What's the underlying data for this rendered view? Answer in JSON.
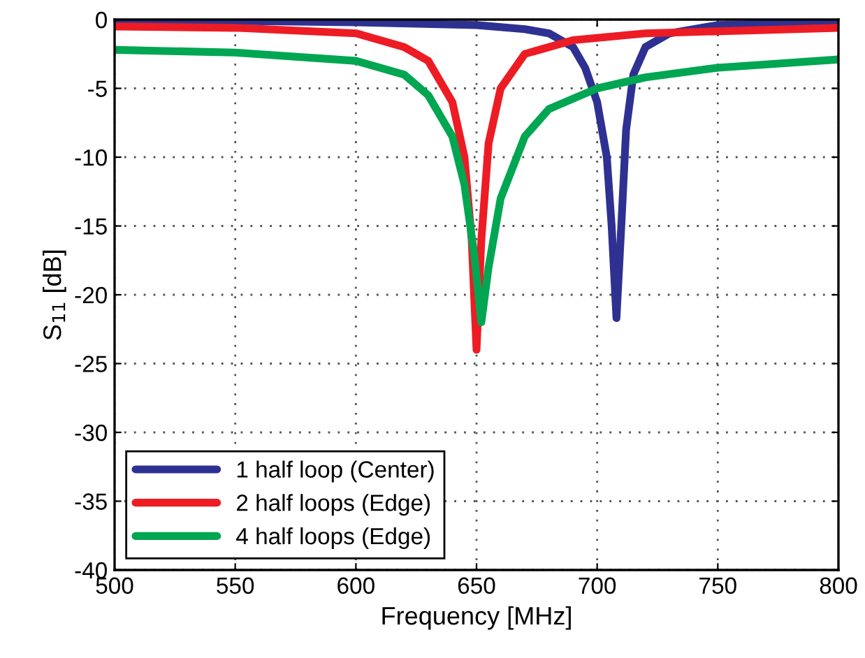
{
  "chart_data": {
    "type": "line",
    "xlabel": "Frequency [MHz]",
    "ylabel": "S$_{11}$ [dB]",
    "xlim": [
      500,
      800
    ],
    "ylim": [
      -40,
      0
    ],
    "xticks": [
      500,
      550,
      600,
      650,
      700,
      750,
      800
    ],
    "yticks": [
      -40,
      -35,
      -30,
      -25,
      -20,
      -15,
      -10,
      -5,
      0
    ],
    "grid": true,
    "legend": "bottom left",
    "line_style": "solid",
    "marker": "none",
    "series": [
      {
        "name": "1 half loop (Center)",
        "color": "#2e3192",
        "x": [
          500,
          550,
          600,
          650,
          670,
          680,
          690,
          695,
          700,
          704,
          706,
          708,
          710,
          712,
          715,
          720,
          730,
          750,
          800
        ],
        "values": [
          -0.1,
          -0.1,
          -0.2,
          -0.4,
          -0.7,
          -1,
          -2,
          -3.5,
          -6,
          -10,
          -15,
          -21.7,
          -15,
          -8,
          -4,
          -2,
          -1,
          -0.4,
          -0.2
        ]
      },
      {
        "name": "2 half loops (Edge)",
        "color": "#ed1c24",
        "x": [
          500,
          550,
          600,
          620,
          630,
          640,
          645,
          648,
          650,
          652,
          655,
          660,
          670,
          690,
          720,
          800
        ],
        "values": [
          -0.5,
          -0.6,
          -1,
          -2,
          -3,
          -6,
          -10,
          -16,
          -24,
          -16,
          -9,
          -5,
          -2.5,
          -1.5,
          -1,
          -0.6
        ]
      },
      {
        "name": "4 half loops (Edge)",
        "color": "#00a651",
        "x": [
          500,
          550,
          600,
          620,
          630,
          640,
          645,
          649,
          652,
          655,
          660,
          670,
          680,
          700,
          720,
          750,
          800
        ],
        "values": [
          -2.2,
          -2.4,
          -3,
          -4,
          -5.5,
          -8.5,
          -12,
          -17,
          -22,
          -18,
          -13,
          -8.5,
          -6.5,
          -5,
          -4.2,
          -3.5,
          -2.9
        ]
      }
    ]
  }
}
